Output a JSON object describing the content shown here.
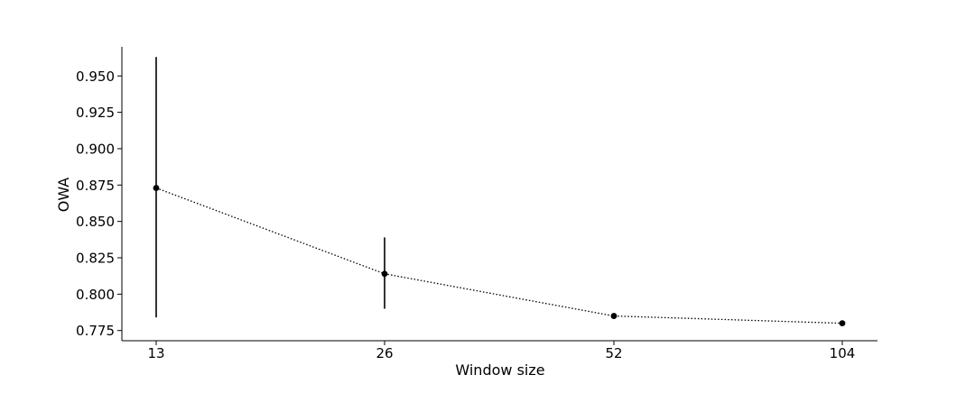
{
  "chart_data": {
    "type": "line",
    "title": "",
    "xlabel": "Window size",
    "ylabel": "OWA",
    "categories": [
      "13",
      "26",
      "52",
      "104"
    ],
    "x_ticks": [
      "13",
      "26",
      "52",
      "104"
    ],
    "y_ticks": [
      "0.775",
      "0.800",
      "0.825",
      "0.850",
      "0.875",
      "0.900",
      "0.925",
      "0.950"
    ],
    "ylim": [
      0.768,
      0.97
    ],
    "grid": false,
    "series": [
      {
        "values": [
          0.873,
          0.814,
          0.785,
          0.78
        ],
        "error_lower": [
          0.784,
          0.79,
          0.785,
          0.779
        ],
        "error_upper": [
          0.963,
          0.839,
          0.785,
          0.781
        ],
        "line_style": "dotted",
        "marker": "circle",
        "color": "#000000"
      }
    ]
  }
}
